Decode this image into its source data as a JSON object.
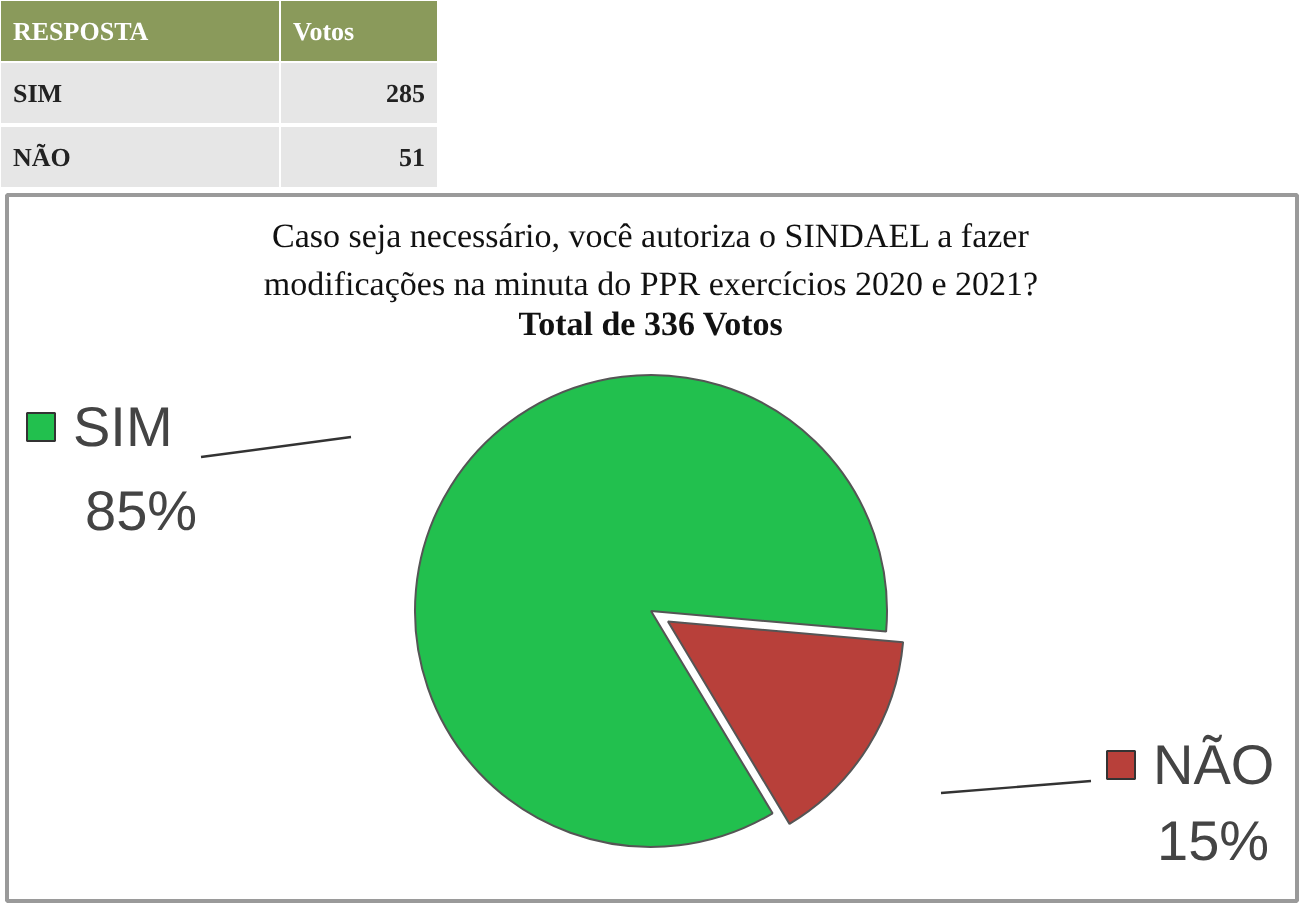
{
  "chart_data": {
    "type": "pie",
    "title": "Caso seja necessário, você autoriza o SINDAEL a fazer\nmodificações na minuta do PPR exercícios 2020 e 2021?",
    "subtitle": "Total de 336 Votos",
    "categories": [
      "SIM",
      "NÃO"
    ],
    "values": [
      85,
      15
    ],
    "colors": [
      "#22c04e",
      "#b8403a"
    ],
    "value_labels": [
      "85%",
      "15%"
    ],
    "legend": "left",
    "annotations": [
      "RESPOSTA",
      "Votos",
      "SIM",
      "285",
      "NÃO",
      "51"
    ]
  }
}
